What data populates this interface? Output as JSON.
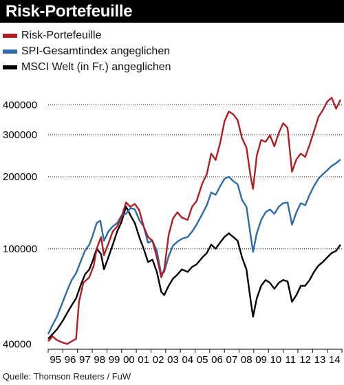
{
  "title": "Risk-Portefeuille",
  "source": "Quelle: Thomson Reuters / FuW",
  "colors": {
    "title_bg": "#000000",
    "title_fg": "#ffffff",
    "grid": "#000000"
  },
  "chart_data": {
    "type": "line",
    "title": "Risk-Portefeuille",
    "y_scale": "log",
    "ylim": [
      38000,
      470000
    ],
    "y_ticks": [
      {
        "value": 400000,
        "label": "400000"
      },
      {
        "value": 300000,
        "label": "300000"
      },
      {
        "value": 200000,
        "label": "200000"
      },
      {
        "value": 100000,
        "label": "100000"
      },
      {
        "value": 40000,
        "label": "40000"
      }
    ],
    "x_range": [
      1995.0,
      2015.0
    ],
    "x_ticks": [
      "95",
      "96",
      "97",
      "98",
      "99",
      "00",
      "01",
      "02",
      "03",
      "04",
      "05",
      "06",
      "07",
      "08",
      "09",
      "10",
      "11",
      "12",
      "13",
      "14"
    ],
    "legend_position": "top-left",
    "grid": "horizontal-dotted",
    "series": [
      {
        "name": "Risk-Portefeuille",
        "color": "#b01e23",
        "points": [
          [
            1995.0,
            41000
          ],
          [
            1995.3,
            43000
          ],
          [
            1995.6,
            41500
          ],
          [
            1996.0,
            40500
          ],
          [
            1996.3,
            40000
          ],
          [
            1996.6,
            41000
          ],
          [
            1996.9,
            42000
          ],
          [
            1997.1,
            60000
          ],
          [
            1997.4,
            72000
          ],
          [
            1997.8,
            76000
          ],
          [
            1998.1,
            85000
          ],
          [
            1998.3,
            100000
          ],
          [
            1998.6,
            112000
          ],
          [
            1998.8,
            94000
          ],
          [
            1999.1,
            105000
          ],
          [
            1999.4,
            118000
          ],
          [
            1999.7,
            124000
          ],
          [
            2000.0,
            136000
          ],
          [
            2000.3,
            156000
          ],
          [
            2000.6,
            150000
          ],
          [
            2000.9,
            154000
          ],
          [
            2001.2,
            145000
          ],
          [
            2001.5,
            124000
          ],
          [
            2001.8,
            112000
          ],
          [
            2002.1,
            108000
          ],
          [
            2002.4,
            92000
          ],
          [
            2002.7,
            76000
          ],
          [
            2002.9,
            82000
          ],
          [
            2003.2,
            114000
          ],
          [
            2003.5,
            134000
          ],
          [
            2003.8,
            142000
          ],
          [
            2004.1,
            135000
          ],
          [
            2004.5,
            132000
          ],
          [
            2004.8,
            150000
          ],
          [
            2005.1,
            158000
          ],
          [
            2005.5,
            188000
          ],
          [
            2005.8,
            205000
          ],
          [
            2006.1,
            250000
          ],
          [
            2006.4,
            235000
          ],
          [
            2006.7,
            275000
          ],
          [
            2007.0,
            340000
          ],
          [
            2007.3,
            375000
          ],
          [
            2007.6,
            365000
          ],
          [
            2007.9,
            345000
          ],
          [
            2008.2,
            290000
          ],
          [
            2008.5,
            265000
          ],
          [
            2008.8,
            198000
          ],
          [
            2008.95,
            178000
          ],
          [
            2009.2,
            245000
          ],
          [
            2009.5,
            285000
          ],
          [
            2009.8,
            280000
          ],
          [
            2010.1,
            298000
          ],
          [
            2010.4,
            268000
          ],
          [
            2010.7,
            305000
          ],
          [
            2011.0,
            335000
          ],
          [
            2011.3,
            320000
          ],
          [
            2011.6,
            210000
          ],
          [
            2011.9,
            236000
          ],
          [
            2012.2,
            250000
          ],
          [
            2012.5,
            242000
          ],
          [
            2012.8,
            272000
          ],
          [
            2013.1,
            310000
          ],
          [
            2013.4,
            355000
          ],
          [
            2013.7,
            380000
          ],
          [
            2014.0,
            412000
          ],
          [
            2014.3,
            428000
          ],
          [
            2014.6,
            385000
          ],
          [
            2014.9,
            420000
          ]
        ]
      },
      {
        "name": "SPI-Gesamtindex angeglichen",
        "color": "#2e6aa8",
        "points": [
          [
            1995.0,
            44000
          ],
          [
            1995.3,
            48000
          ],
          [
            1995.6,
            52000
          ],
          [
            1996.0,
            60000
          ],
          [
            1996.3,
            67000
          ],
          [
            1996.6,
            74000
          ],
          [
            1996.9,
            79000
          ],
          [
            1997.2,
            88000
          ],
          [
            1997.5,
            98000
          ],
          [
            1997.8,
            104000
          ],
          [
            1998.0,
            112000
          ],
          [
            1998.3,
            128000
          ],
          [
            1998.55,
            131000
          ],
          [
            1998.8,
            108000
          ],
          [
            1999.1,
            118000
          ],
          [
            1999.4,
            124000
          ],
          [
            1999.7,
            128000
          ],
          [
            2000.0,
            138000
          ],
          [
            2000.3,
            140000
          ],
          [
            2000.6,
            148000
          ],
          [
            2000.9,
            146000
          ],
          [
            2001.2,
            132000
          ],
          [
            2001.5,
            124000
          ],
          [
            2001.8,
            106000
          ],
          [
            2002.1,
            108000
          ],
          [
            2002.4,
            98000
          ],
          [
            2002.7,
            78000
          ],
          [
            2002.9,
            80000
          ],
          [
            2003.2,
            93000
          ],
          [
            2003.5,
            103000
          ],
          [
            2003.8,
            107000
          ],
          [
            2004.1,
            110000
          ],
          [
            2004.5,
            112000
          ],
          [
            2004.8,
            118000
          ],
          [
            2005.1,
            126000
          ],
          [
            2005.5,
            140000
          ],
          [
            2005.8,
            152000
          ],
          [
            2006.1,
            172000
          ],
          [
            2006.4,
            168000
          ],
          [
            2006.7,
            182000
          ],
          [
            2007.0,
            196000
          ],
          [
            2007.3,
            200000
          ],
          [
            2007.6,
            192000
          ],
          [
            2007.9,
            186000
          ],
          [
            2008.2,
            160000
          ],
          [
            2008.5,
            150000
          ],
          [
            2008.8,
            112000
          ],
          [
            2008.95,
            97000
          ],
          [
            2009.2,
            116000
          ],
          [
            2009.5,
            132000
          ],
          [
            2009.8,
            142000
          ],
          [
            2010.1,
            146000
          ],
          [
            2010.4,
            140000
          ],
          [
            2010.7,
            150000
          ],
          [
            2011.0,
            155000
          ],
          [
            2011.3,
            156000
          ],
          [
            2011.6,
            126000
          ],
          [
            2011.9,
            142000
          ],
          [
            2012.2,
            155000
          ],
          [
            2012.5,
            152000
          ],
          [
            2012.8,
            168000
          ],
          [
            2013.1,
            183000
          ],
          [
            2013.4,
            196000
          ],
          [
            2013.7,
            205000
          ],
          [
            2014.0,
            213000
          ],
          [
            2014.3,
            222000
          ],
          [
            2014.6,
            228000
          ],
          [
            2014.9,
            236000
          ]
        ]
      },
      {
        "name": "MSCI Welt (in Fr.) angeglichen",
        "color": "#000000",
        "points": [
          [
            1995.0,
            42000
          ],
          [
            1995.3,
            44000
          ],
          [
            1995.6,
            46000
          ],
          [
            1996.0,
            50000
          ],
          [
            1996.3,
            54000
          ],
          [
            1996.6,
            58000
          ],
          [
            1996.9,
            62000
          ],
          [
            1997.2,
            70000
          ],
          [
            1997.5,
            78000
          ],
          [
            1997.8,
            82000
          ],
          [
            1998.0,
            88000
          ],
          [
            1998.3,
            100000
          ],
          [
            1998.6,
            95000
          ],
          [
            1998.8,
            82000
          ],
          [
            1999.1,
            92000
          ],
          [
            1999.4,
            104000
          ],
          [
            1999.7,
            118000
          ],
          [
            2000.0,
            130000
          ],
          [
            2000.3,
            150000
          ],
          [
            2000.6,
            138000
          ],
          [
            2000.9,
            128000
          ],
          [
            2001.2,
            112000
          ],
          [
            2001.5,
            100000
          ],
          [
            2001.8,
            88000
          ],
          [
            2002.1,
            90000
          ],
          [
            2002.4,
            80000
          ],
          [
            2002.7,
            66000
          ],
          [
            2002.9,
            64000
          ],
          [
            2003.2,
            70000
          ],
          [
            2003.5,
            75000
          ],
          [
            2003.8,
            78000
          ],
          [
            2004.1,
            82000
          ],
          [
            2004.5,
            80000
          ],
          [
            2004.8,
            84000
          ],
          [
            2005.1,
            86000
          ],
          [
            2005.5,
            92000
          ],
          [
            2005.8,
            96000
          ],
          [
            2006.1,
            104000
          ],
          [
            2006.4,
            100000
          ],
          [
            2006.7,
            106000
          ],
          [
            2007.0,
            112000
          ],
          [
            2007.3,
            116000
          ],
          [
            2007.6,
            112000
          ],
          [
            2007.9,
            108000
          ],
          [
            2008.2,
            92000
          ],
          [
            2008.5,
            82000
          ],
          [
            2008.8,
            60000
          ],
          [
            2008.95,
            52000
          ],
          [
            2009.2,
            62000
          ],
          [
            2009.5,
            70000
          ],
          [
            2009.8,
            74000
          ],
          [
            2010.1,
            72000
          ],
          [
            2010.4,
            68000
          ],
          [
            2010.7,
            72000
          ],
          [
            2011.0,
            74000
          ],
          [
            2011.3,
            73000
          ],
          [
            2011.6,
            60000
          ],
          [
            2011.9,
            64000
          ],
          [
            2012.2,
            70000
          ],
          [
            2012.5,
            70000
          ],
          [
            2012.8,
            74000
          ],
          [
            2013.1,
            80000
          ],
          [
            2013.4,
            85000
          ],
          [
            2013.7,
            88000
          ],
          [
            2014.0,
            92000
          ],
          [
            2014.3,
            96000
          ],
          [
            2014.6,
            98000
          ],
          [
            2014.9,
            104000
          ]
        ]
      }
    ]
  }
}
